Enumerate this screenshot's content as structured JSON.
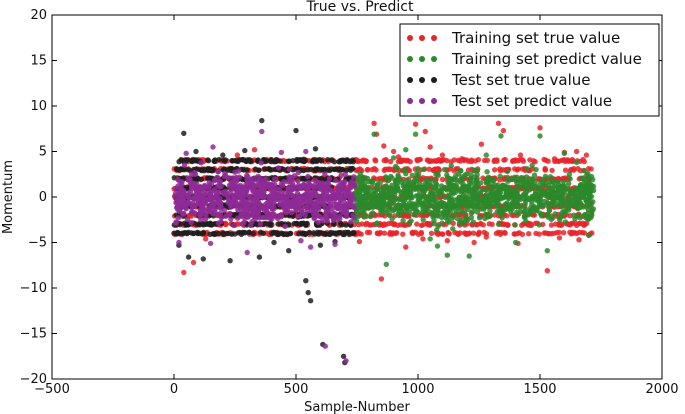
{
  "chart_data": {
    "type": "scatter",
    "title": "True vs. Predict",
    "xlabel": "Sample-Number",
    "ylabel": "Momentum",
    "xlim": [
      -500,
      2000
    ],
    "ylim": [
      -20,
      20
    ],
    "x_ticks": [
      -500,
      0,
      500,
      1000,
      1500,
      2000
    ],
    "y_ticks": [
      -20,
      -15,
      -10,
      -5,
      0,
      5,
      10,
      15,
      20
    ],
    "x_tick_labels": [
      "−500",
      "0",
      "500",
      "1000",
      "1500",
      "2000"
    ],
    "y_tick_labels": [
      "−20",
      "−15",
      "−10",
      "−5",
      "0",
      "5",
      "10",
      "15",
      "20"
    ],
    "grid": false,
    "legend_position": "top-right",
    "series": [
      {
        "name": "Training set true value",
        "color": "#e8242a",
        "x_range": [
          0,
          1720
        ],
        "points": [
          [
            820,
            8.1
          ],
          [
            830,
            6.9
          ],
          [
            860,
            5.6
          ],
          [
            900,
            5.0
          ],
          [
            920,
            4.4
          ],
          [
            990,
            8.0
          ],
          [
            1030,
            7.2
          ],
          [
            1050,
            5.5
          ],
          [
            1100,
            4.6
          ],
          [
            1180,
            4.2
          ],
          [
            1260,
            5.8
          ],
          [
            1330,
            8.1
          ],
          [
            1350,
            7.3
          ],
          [
            1420,
            4.6
          ],
          [
            1500,
            7.6
          ],
          [
            1560,
            4.2
          ],
          [
            1600,
            4.9
          ],
          [
            1650,
            5.0
          ],
          [
            1690,
            4.6
          ],
          [
            760,
            -4.9
          ],
          [
            850,
            -9.0
          ],
          [
            950,
            -5.5
          ],
          [
            1020,
            -4.6
          ],
          [
            1120,
            -4.8
          ],
          [
            1230,
            -5.0
          ],
          [
            1280,
            -4.4
          ],
          [
            1410,
            -5.1
          ],
          [
            1530,
            -8.1
          ],
          [
            1580,
            -4.5
          ],
          [
            1660,
            -4.7
          ],
          [
            1700,
            -4.2
          ],
          [
            40,
            -8.3
          ],
          [
            80,
            -7.2
          ],
          [
            130,
            -4.6
          ],
          [
            260,
            4.6
          ],
          [
            330,
            5.2
          ]
        ]
      },
      {
        "name": "Training set predict value",
        "color": "#2a8a2a",
        "x_range": [
          740,
          1720
        ],
        "points": [
          [
            820,
            6.9
          ],
          [
            870,
            -7.4
          ],
          [
            990,
            6.9
          ],
          [
            1050,
            -4.6
          ],
          [
            1120,
            -6.4
          ],
          [
            1210,
            -6.5
          ],
          [
            1340,
            6.7
          ],
          [
            1400,
            -5.0
          ],
          [
            1500,
            6.7
          ],
          [
            1530,
            -5.9
          ],
          [
            1600,
            4.8
          ],
          [
            1650,
            3.8
          ],
          [
            900,
            4.3
          ],
          [
            950,
            5.2
          ],
          [
            1080,
            -5.4
          ],
          [
            1280,
            4.6
          ],
          [
            1700,
            -4.2
          ]
        ]
      },
      {
        "name": "Test set true value",
        "color": "#1e1e1e",
        "x_range": [
          0,
          740
        ],
        "points": [
          [
            40,
            7.0
          ],
          [
            360,
            8.4
          ],
          [
            500,
            7.3
          ],
          [
            580,
            5.3
          ],
          [
            630,
            4.1
          ],
          [
            90,
            5.0
          ],
          [
            200,
            4.6
          ],
          [
            290,
            5.1
          ],
          [
            60,
            -6.6
          ],
          [
            120,
            -6.8
          ],
          [
            230,
            -7.0
          ],
          [
            350,
            -6.6
          ],
          [
            470,
            -5.9
          ],
          [
            540,
            -9.2
          ],
          [
            550,
            -10.5
          ],
          [
            560,
            -11.4
          ],
          [
            610,
            -16.2
          ],
          [
            700,
            -18.2
          ],
          [
            695,
            -17.5
          ],
          [
            600,
            -5.3
          ],
          [
            660,
            -4.9
          ],
          [
            20,
            -5.3
          ],
          [
            410,
            -5.0
          ]
        ]
      },
      {
        "name": "Test set predict value",
        "color": "#8e2a96",
        "x_range": [
          0,
          740
        ],
        "points": [
          [
            50,
            4.8
          ],
          [
            360,
            7.2
          ],
          [
            160,
            5.5
          ],
          [
            440,
            4.9
          ],
          [
            540,
            5.0
          ],
          [
            620,
            -16.4
          ],
          [
            705,
            -18.0
          ],
          [
            20,
            -5.0
          ],
          [
            150,
            -5.1
          ],
          [
            300,
            -6.1
          ],
          [
            520,
            -4.8
          ],
          [
            560,
            -5.5
          ],
          [
            660,
            -5.2
          ]
        ]
      }
    ]
  }
}
